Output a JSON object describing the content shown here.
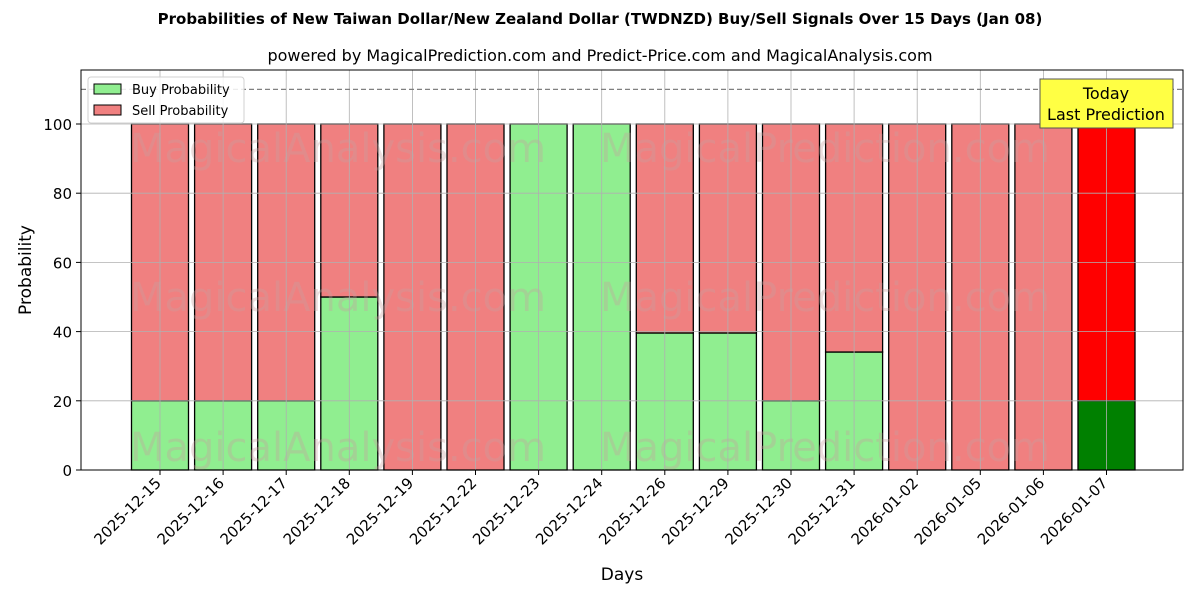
{
  "chart_data": {
    "type": "bar",
    "stacked": true,
    "title": "Probabilities of New Taiwan Dollar/New Zealand Dollar (TWDNZD) Buy/Sell Signals Over 15 Days (Jan 08)",
    "subtitle": "powered by MagicalPrediction.com and Predict-Price.com and MagicalAnalysis.com",
    "xlabel": "Days",
    "ylabel": "Probability",
    "ylim": [
      0,
      115
    ],
    "yticks": [
      0,
      20,
      40,
      60,
      80,
      100
    ],
    "grid": true,
    "legend_position": "upper left",
    "reference_line": 110,
    "categories": [
      "2025-12-15",
      "2025-12-16",
      "2025-12-17",
      "2025-12-18",
      "2025-12-19",
      "2025-12-22",
      "2025-12-23",
      "2025-12-24",
      "2025-12-26",
      "2025-12-29",
      "2025-12-30",
      "2025-12-31",
      "2026-01-02",
      "2026-01-05",
      "2026-01-06",
      "2026-01-07"
    ],
    "series": [
      {
        "name": "Buy Probability",
        "color": "#90ee90",
        "values": [
          20,
          20,
          20,
          50,
          0,
          0,
          100,
          100,
          39.6,
          39.6,
          20,
          34.1,
          0,
          0,
          0,
          20
        ]
      },
      {
        "name": "Sell Probability",
        "color": "#f08080",
        "values": [
          80,
          80,
          80,
          50,
          100,
          100,
          0,
          0,
          60.4,
          60.4,
          80,
          65.9,
          100,
          100,
          100,
          80
        ]
      }
    ],
    "highlight": {
      "index": 15,
      "buy_color": "#008000",
      "sell_color": "#ff0000"
    },
    "annotation": {
      "line1": "Today",
      "line2": "Last Prediction",
      "bg": "#ffff44"
    },
    "watermarks": [
      "MagicalAnalysis.com",
      "MagicalPrediction.com"
    ]
  }
}
